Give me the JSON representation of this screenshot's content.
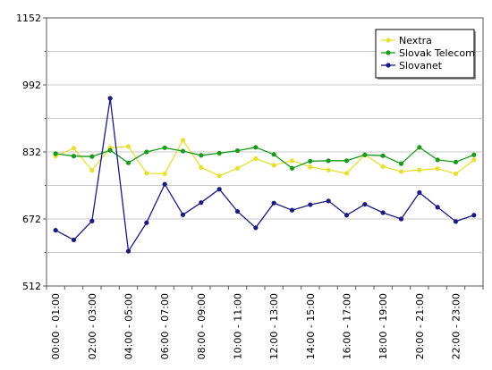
{
  "chart_data": {
    "type": "line",
    "y_ticks": [
      512,
      672,
      832,
      992,
      1152
    ],
    "ylim": [
      512,
      1152
    ],
    "x_tick_labels": [
      "00:00 - 01:00",
      "02:00 - 03:00",
      "04:00 - 05:00",
      "06:00 - 07:00",
      "08:00 - 09:00",
      "10:00 - 11:00",
      "12:00 - 13:00",
      "14:00 - 15:00",
      "16:00 - 17:00",
      "18:00 - 19:00",
      "20:00 - 21:00",
      "22:00 - 23:00"
    ],
    "x": [
      "00:00 - 01:00",
      "01:00 - 02:00",
      "02:00 - 03:00",
      "03:00 - 04:00",
      "04:00 - 05:00",
      "05:00 - 06:00",
      "06:00 - 07:00",
      "07:00 - 08:00",
      "08:00 - 09:00",
      "09:00 - 10:00",
      "10:00 - 11:00",
      "11:00 - 12:00",
      "12:00 - 13:00",
      "13:00 - 14:00",
      "14:00 - 15:00",
      "15:00 - 16:00",
      "16:00 - 17:00",
      "17:00 - 18:00",
      "18:00 - 19:00",
      "19:00 - 20:00",
      "20:00 - 21:00",
      "21:00 - 22:00",
      "22:00 - 23:00",
      "23:00 - 24:00"
    ],
    "grid": "horizontal",
    "legend_position": "top-right",
    "series": [
      {
        "name": "Nextra",
        "color": "#e8e030",
        "values": [
          822,
          841,
          788,
          842,
          845,
          781,
          780,
          860,
          795,
          775,
          793,
          816,
          800,
          811,
          796,
          789,
          781,
          825,
          797,
          785,
          789,
          792,
          780,
          813
        ]
      },
      {
        "name": "Slovak Telecom",
        "color": "#1a9a1a",
        "values": [
          828,
          822,
          821,
          836,
          806,
          832,
          842,
          834,
          824,
          829,
          835,
          843,
          826,
          793,
          810,
          811,
          811,
          825,
          823,
          804,
          843,
          813,
          808,
          825
        ]
      },
      {
        "name": "Slovanet",
        "color": "#1a1a80",
        "values": [
          645,
          622,
          667,
          960,
          595,
          663,
          755,
          682,
          711,
          743,
          690,
          651,
          710,
          693,
          706,
          715,
          681,
          707,
          687,
          672,
          735,
          700,
          666,
          681
        ]
      }
    ]
  }
}
